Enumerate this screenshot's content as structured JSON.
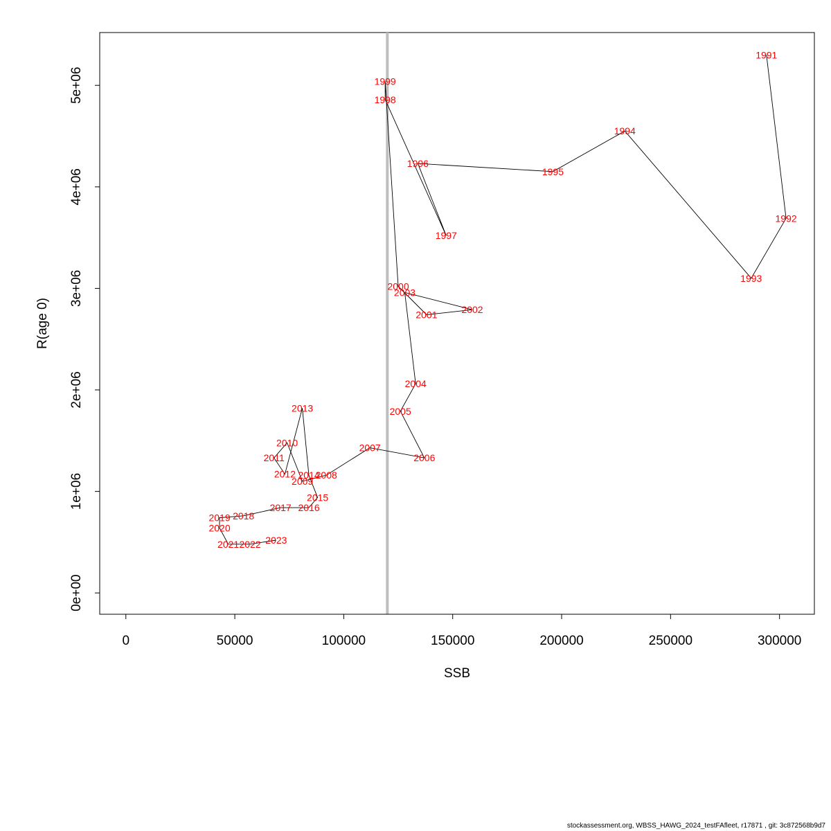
{
  "chart_data": {
    "type": "scatter",
    "xlabel": "SSB",
    "ylabel": "R(age 0)",
    "xlim": [
      -12000,
      316000
    ],
    "ylim": [
      -210000,
      5520000
    ],
    "x_ticks": [
      0,
      50000,
      100000,
      150000,
      200000,
      250000,
      300000
    ],
    "x_tick_labels": [
      "0",
      "50000",
      "100000",
      "150000",
      "200000",
      "250000",
      "300000"
    ],
    "y_ticks": [
      0,
      1000000,
      2000000,
      3000000,
      4000000,
      5000000
    ],
    "y_tick_labels": [
      "0e+00",
      "1e+06",
      "2e+06",
      "3e+06",
      "4e+06",
      "5e+06"
    ],
    "reference_line": {
      "x": 120000,
      "color": "#bebebe"
    },
    "line_color": "#000000",
    "label_color": "#ff0000",
    "grid": false,
    "points": [
      {
        "label": "1991",
        "x": 294000,
        "y": 5300000
      },
      {
        "label": "1992",
        "x": 303000,
        "y": 3690000
      },
      {
        "label": "1993",
        "x": 287000,
        "y": 3100000
      },
      {
        "label": "1994",
        "x": 229000,
        "y": 4550000
      },
      {
        "label": "1995",
        "x": 196000,
        "y": 4150000
      },
      {
        "label": "1996",
        "x": 134000,
        "y": 4230000
      },
      {
        "label": "1997",
        "x": 147000,
        "y": 3520000
      },
      {
        "label": "1998",
        "x": 119000,
        "y": 4860000
      },
      {
        "label": "1999",
        "x": 119000,
        "y": 5040000
      },
      {
        "label": "2000",
        "x": 125000,
        "y": 3020000
      },
      {
        "label": "2001",
        "x": 138000,
        "y": 2740000
      },
      {
        "label": "2002",
        "x": 159000,
        "y": 2790000
      },
      {
        "label": "2003",
        "x": 128000,
        "y": 2960000
      },
      {
        "label": "2004",
        "x": 133000,
        "y": 2060000
      },
      {
        "label": "2005",
        "x": 126000,
        "y": 1790000
      },
      {
        "label": "2006",
        "x": 137000,
        "y": 1330000
      },
      {
        "label": "2007",
        "x": 112000,
        "y": 1430000
      },
      {
        "label": "2008",
        "x": 92000,
        "y": 1160000
      },
      {
        "label": "2009",
        "x": 81000,
        "y": 1100000
      },
      {
        "label": "2010",
        "x": 74000,
        "y": 1480000
      },
      {
        "label": "2011",
        "x": 68000,
        "y": 1330000
      },
      {
        "label": "2012",
        "x": 73000,
        "y": 1170000
      },
      {
        "label": "2013",
        "x": 81000,
        "y": 1820000
      },
      {
        "label": "2014",
        "x": 84000,
        "y": 1160000
      },
      {
        "label": "2015",
        "x": 88000,
        "y": 940000
      },
      {
        "label": "2016",
        "x": 84000,
        "y": 840000
      },
      {
        "label": "2017",
        "x": 71000,
        "y": 840000
      },
      {
        "label": "2018",
        "x": 54000,
        "y": 760000
      },
      {
        "label": "2019",
        "x": 43000,
        "y": 740000
      },
      {
        "label": "2020",
        "x": 43000,
        "y": 640000
      },
      {
        "label": "2021",
        "x": 47000,
        "y": 480000
      },
      {
        "label": "2022",
        "x": 57000,
        "y": 480000
      },
      {
        "label": "2023",
        "x": 69000,
        "y": 520000
      }
    ]
  },
  "footer": "stockassessment.org, WBSS_HAWG_2024_testFAfleet, r17871 , git: 3c872568b9d7"
}
